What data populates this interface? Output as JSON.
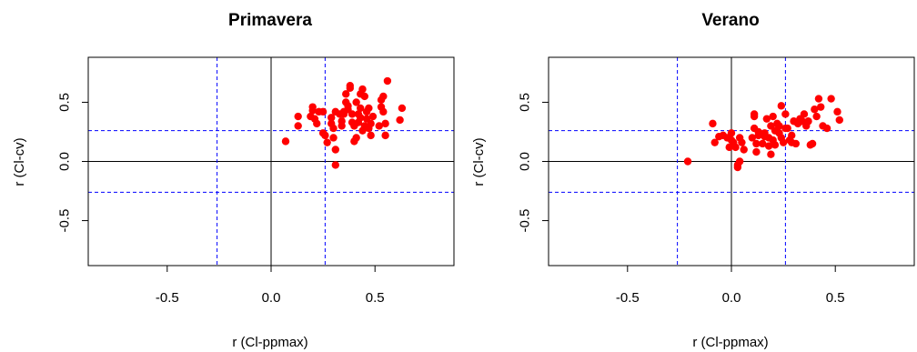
{
  "chart_data": [
    {
      "type": "scatter",
      "title": "Primavera",
      "xlabel": "r (Cl-ppmax)",
      "ylabel": "r (Cl-cv)",
      "xlim": [
        -0.88,
        0.88
      ],
      "ylim": [
        -0.88,
        0.88
      ],
      "xticks": [
        "-0.5",
        "0.0",
        "0.5"
      ],
      "xtick_values": [
        -0.5,
        0.0,
        0.5
      ],
      "yticks": [
        "-0.5",
        "0.0",
        "0.5"
      ],
      "ytick_values": [
        -0.5,
        0.0,
        0.5
      ],
      "reference_lines": {
        "solid": [
          0
        ],
        "dashed": [
          -0.26,
          0.26
        ]
      },
      "point_color": "#ff0000",
      "points": [
        [
          0.07,
          0.17
        ],
        [
          0.13,
          0.38
        ],
        [
          0.13,
          0.3
        ],
        [
          0.19,
          0.38
        ],
        [
          0.2,
          0.43
        ],
        [
          0.2,
          0.46
        ],
        [
          0.21,
          0.36
        ],
        [
          0.22,
          0.32
        ],
        [
          0.23,
          0.42
        ],
        [
          0.25,
          0.42
        ],
        [
          0.25,
          0.24
        ],
        [
          0.26,
          0.22
        ],
        [
          0.27,
          0.16
        ],
        [
          0.29,
          0.32
        ],
        [
          0.29,
          0.37
        ],
        [
          0.3,
          0.2
        ],
        [
          0.3,
          0.28
        ],
        [
          0.31,
          0.1
        ],
        [
          0.31,
          -0.03
        ],
        [
          0.31,
          0.42
        ],
        [
          0.33,
          0.4
        ],
        [
          0.34,
          0.3
        ],
        [
          0.34,
          0.34
        ],
        [
          0.35,
          0.42
        ],
        [
          0.35,
          0.4
        ],
        [
          0.36,
          0.5
        ],
        [
          0.36,
          0.57
        ],
        [
          0.37,
          0.44
        ],
        [
          0.37,
          0.47
        ],
        [
          0.38,
          0.62
        ],
        [
          0.38,
          0.64
        ],
        [
          0.39,
          0.4
        ],
        [
          0.39,
          0.33
        ],
        [
          0.4,
          0.3
        ],
        [
          0.4,
          0.17
        ],
        [
          0.41,
          0.2
        ],
        [
          0.41,
          0.5
        ],
        [
          0.42,
          0.4
        ],
        [
          0.42,
          0.33
        ],
        [
          0.43,
          0.45
        ],
        [
          0.43,
          0.37
        ],
        [
          0.43,
          0.57
        ],
        [
          0.44,
          0.61
        ],
        [
          0.44,
          0.26
        ],
        [
          0.45,
          0.3
        ],
        [
          0.45,
          0.55
        ],
        [
          0.46,
          0.42
        ],
        [
          0.46,
          0.36
        ],
        [
          0.47,
          0.45
        ],
        [
          0.47,
          0.28
        ],
        [
          0.48,
          0.32
        ],
        [
          0.48,
          0.22
        ],
        [
          0.49,
          0.38
        ],
        [
          0.52,
          0.3
        ],
        [
          0.53,
          0.46
        ],
        [
          0.53,
          0.52
        ],
        [
          0.54,
          0.42
        ],
        [
          0.54,
          0.55
        ],
        [
          0.55,
          0.32
        ],
        [
          0.55,
          0.22
        ],
        [
          0.56,
          0.68
        ],
        [
          0.62,
          0.35
        ],
        [
          0.63,
          0.45
        ]
      ]
    },
    {
      "type": "scatter",
      "title": "Verano",
      "xlabel": "r (Cl-ppmax)",
      "ylabel": "r (Cl-cv)",
      "xlim": [
        -0.88,
        0.88
      ],
      "ylim": [
        -0.88,
        0.88
      ],
      "xticks": [
        "-0.5",
        "0.0",
        "0.5"
      ],
      "xtick_values": [
        -0.5,
        0.0,
        0.5
      ],
      "yticks": [
        "-0.5",
        "0.0",
        "0.5"
      ],
      "ytick_values": [
        -0.5,
        0.0,
        0.5
      ],
      "reference_lines": {
        "solid": [
          0
        ],
        "dashed": [
          -0.26,
          0.26
        ]
      },
      "point_color": "#ff0000",
      "points": [
        [
          -0.21,
          0.0
        ],
        [
          -0.09,
          0.32
        ],
        [
          -0.08,
          0.16
        ],
        [
          -0.06,
          0.21
        ],
        [
          -0.04,
          0.22
        ],
        [
          -0.02,
          0.2
        ],
        [
          -0.01,
          0.12
        ],
        [
          0.0,
          0.24
        ],
        [
          0.0,
          0.18
        ],
        [
          0.01,
          0.16
        ],
        [
          0.02,
          0.12
        ],
        [
          0.03,
          -0.03
        ],
        [
          0.03,
          -0.05
        ],
        [
          0.04,
          0.0
        ],
        [
          0.04,
          0.2
        ],
        [
          0.05,
          0.16
        ],
        [
          0.06,
          0.1
        ],
        [
          0.1,
          0.2
        ],
        [
          0.11,
          0.38
        ],
        [
          0.11,
          0.4
        ],
        [
          0.11,
          0.28
        ],
        [
          0.12,
          0.15
        ],
        [
          0.12,
          0.08
        ],
        [
          0.13,
          0.22
        ],
        [
          0.13,
          0.25
        ],
        [
          0.15,
          0.15
        ],
        [
          0.16,
          0.24
        ],
        [
          0.16,
          0.21
        ],
        [
          0.17,
          0.36
        ],
        [
          0.18,
          0.13
        ],
        [
          0.18,
          0.2
        ],
        [
          0.19,
          0.3
        ],
        [
          0.19,
          0.06
        ],
        [
          0.2,
          0.38
        ],
        [
          0.2,
          0.18
        ],
        [
          0.21,
          0.14
        ],
        [
          0.21,
          0.26
        ],
        [
          0.22,
          0.32
        ],
        [
          0.23,
          0.3
        ],
        [
          0.23,
          0.24
        ],
        [
          0.24,
          0.47
        ],
        [
          0.24,
          0.2
        ],
        [
          0.25,
          0.16
        ],
        [
          0.26,
          0.4
        ],
        [
          0.26,
          0.28
        ],
        [
          0.27,
          0.28
        ],
        [
          0.28,
          0.18
        ],
        [
          0.29,
          0.22
        ],
        [
          0.29,
          0.16
        ],
        [
          0.3,
          0.34
        ],
        [
          0.31,
          0.15
        ],
        [
          0.32,
          0.32
        ],
        [
          0.33,
          0.36
        ],
        [
          0.34,
          0.34
        ],
        [
          0.35,
          0.4
        ],
        [
          0.36,
          0.3
        ],
        [
          0.37,
          0.34
        ],
        [
          0.38,
          0.14
        ],
        [
          0.39,
          0.15
        ],
        [
          0.4,
          0.44
        ],
        [
          0.41,
          0.38
        ],
        [
          0.42,
          0.53
        ],
        [
          0.43,
          0.46
        ],
        [
          0.44,
          0.3
        ],
        [
          0.46,
          0.28
        ],
        [
          0.48,
          0.53
        ],
        [
          0.51,
          0.42
        ],
        [
          0.52,
          0.35
        ]
      ]
    }
  ]
}
